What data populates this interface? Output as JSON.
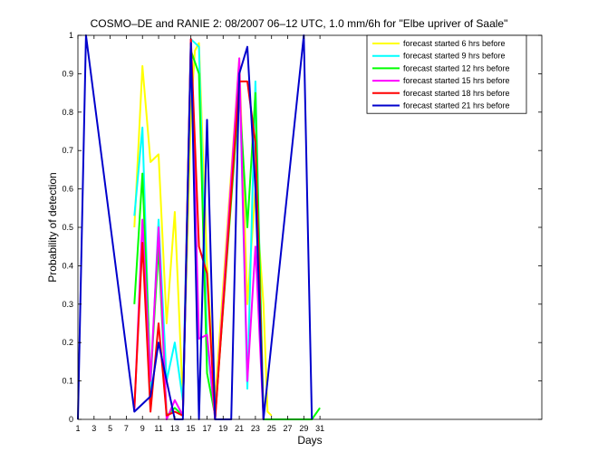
{
  "chart_data": {
    "type": "line",
    "title": "COSMO–DE and RANIE 2: 08/2007 06–12 UTC, 1.0 mm/6h for \"Elbe upriver of Saale\"",
    "xlabel": "Days",
    "ylabel": "Probability of detection",
    "xlim": [
      1,
      58.5
    ],
    "ylim": [
      0,
      1
    ],
    "xticks": [
      1,
      3,
      5,
      7,
      9,
      11,
      13,
      15,
      17,
      19,
      21,
      23,
      25,
      27,
      29,
      31
    ],
    "yticks": [
      0,
      0.1,
      0.2,
      0.3,
      0.4,
      0.5,
      0.6,
      0.7,
      0.8,
      0.9,
      1
    ],
    "grid": false,
    "legend_position": "top-right",
    "series": [
      {
        "name": "forecast started 6 hrs before",
        "color": "#ffff00",
        "points": [
          [
            8,
            0.5
          ],
          [
            9,
            0.92
          ],
          [
            10,
            0.67
          ],
          [
            11,
            0.69
          ],
          [
            12,
            0.25
          ],
          [
            13,
            0.54
          ],
          [
            14,
            0.05
          ],
          [
            15,
            0.8
          ],
          [
            15.5,
            0.96
          ],
          [
            16,
            0.98
          ],
          [
            17,
            0.4
          ],
          [
            18,
            0.05
          ],
          [
            21,
            0.94
          ],
          [
            22,
            0.3
          ],
          [
            23,
            0.6
          ],
          [
            24,
            0.3
          ],
          [
            24.5,
            0.02
          ],
          [
            25,
            0.01
          ]
        ]
      },
      {
        "name": "forecast started 9 hrs before",
        "color": "#00ffff",
        "points": [
          [
            8,
            0.53
          ],
          [
            9,
            0.76
          ],
          [
            10,
            0.08
          ],
          [
            11,
            0.52
          ],
          [
            12,
            0.1
          ],
          [
            13,
            0.2
          ],
          [
            14,
            0.05
          ],
          [
            15,
            0.99
          ],
          [
            16,
            0.97
          ],
          [
            17,
            0.2
          ],
          [
            18,
            0.0
          ],
          [
            21,
            0.92
          ],
          [
            22,
            0.08
          ],
          [
            23,
            0.88
          ],
          [
            24,
            0.0
          ]
        ]
      },
      {
        "name": "forecast started 12 hrs before",
        "color": "#00ff00",
        "points": [
          [
            8,
            0.3
          ],
          [
            9,
            0.64
          ],
          [
            10,
            0.1
          ],
          [
            11,
            0.45
          ],
          [
            12,
            0.01
          ],
          [
            13,
            0.03
          ],
          [
            14,
            0.01
          ],
          [
            15,
            0.96
          ],
          [
            16,
            0.9
          ],
          [
            17,
            0.12
          ],
          [
            18,
            0.01
          ],
          [
            21,
            0.85
          ],
          [
            22,
            0.5
          ],
          [
            23,
            0.85
          ],
          [
            24,
            0.0
          ],
          [
            30,
            0.0
          ],
          [
            31,
            0.03
          ]
        ]
      },
      {
        "name": "forecast started 15 hrs before",
        "color": "#ff00ff",
        "points": [
          [
            8,
            0.02
          ],
          [
            9,
            0.52
          ],
          [
            10,
            0.1
          ],
          [
            11,
            0.5
          ],
          [
            12,
            0.0
          ],
          [
            13,
            0.05
          ],
          [
            14,
            0.01
          ],
          [
            15,
            0.99
          ],
          [
            16,
            0.21
          ],
          [
            17,
            0.22
          ],
          [
            18,
            0.0
          ],
          [
            21,
            0.94
          ],
          [
            22,
            0.1
          ],
          [
            23,
            0.45
          ],
          [
            24,
            0.0
          ]
        ]
      },
      {
        "name": "forecast started 18 hrs before",
        "color": "#ff0000",
        "points": [
          [
            8,
            0.03
          ],
          [
            9,
            0.46
          ],
          [
            10,
            0.02
          ],
          [
            11,
            0.25
          ],
          [
            12,
            0.01
          ],
          [
            13,
            0.02
          ],
          [
            14,
            0.01
          ],
          [
            15,
            0.99
          ],
          [
            16,
            0.45
          ],
          [
            17,
            0.38
          ],
          [
            18,
            0.0
          ],
          [
            21,
            0.88
          ],
          [
            22,
            0.88
          ],
          [
            23,
            0.72
          ],
          [
            24,
            0.0
          ]
        ]
      },
      {
        "name": "forecast started 21 hrs before",
        "color": "#0000cc",
        "points": [
          [
            1,
            0.0
          ],
          [
            2,
            1.0
          ],
          [
            8,
            0.02
          ],
          [
            10,
            0.06
          ],
          [
            11,
            0.2
          ],
          [
            13,
            0.0
          ],
          [
            14,
            0.0
          ],
          [
            15,
            0.98
          ],
          [
            16,
            0.0
          ],
          [
            17,
            0.78
          ],
          [
            18,
            0.0
          ],
          [
            20,
            0.0
          ],
          [
            21,
            0.9
          ],
          [
            22,
            0.97
          ],
          [
            23,
            0.6
          ],
          [
            24,
            0.0
          ],
          [
            29,
            1.0
          ],
          [
            30,
            0.0
          ]
        ]
      }
    ]
  }
}
